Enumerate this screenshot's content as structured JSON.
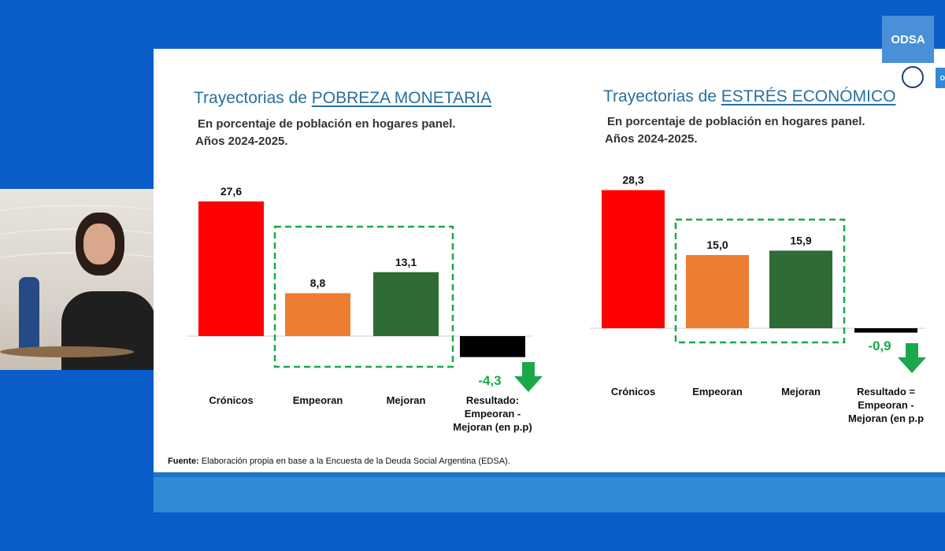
{
  "logo": {
    "text": "ODSA",
    "edge_text": "O"
  },
  "source": {
    "label": "Fuente:",
    "text": " Elaboración propia en base a la Encuesta de la Deuda Social Argentina (EDSA)."
  },
  "chart_data": [
    {
      "type": "bar",
      "title_prefix": "Trayectorias de ",
      "title_emph": "POBREZA MONETARIA",
      "subtitle_1": "En porcentaje de población en hogares panel.",
      "subtitle_2": "Años 2024-2025.",
      "categories": [
        "Crónicos",
        "Empeoran",
        "Mejoran",
        "Resultado: Empeoran - Mejoran (en p.p)"
      ],
      "category_lines": [
        [
          "Crónicos"
        ],
        [
          "Empeoran"
        ],
        [
          "Mejoran"
        ],
        [
          "Resultado:",
          "Empeoran -",
          "Mejoran (en p.p)"
        ]
      ],
      "values": [
        27.6,
        8.8,
        13.1,
        -4.3
      ],
      "labels": [
        "27,6",
        "8,8",
        "13,1",
        "-4,3"
      ],
      "colors": [
        "#ff0000",
        "#ed7d31",
        "#2e6b35",
        "#000000"
      ],
      "highlight": "Empeoran, Mejoran",
      "result_arrow": "down"
    },
    {
      "type": "bar",
      "title_prefix": "Trayectorias de ",
      "title_emph": "ESTRÉS ECONÓMICO",
      "subtitle_1": "En porcentaje de población en hogares panel.",
      "subtitle_2": "Años 2024-2025.",
      "categories": [
        "Crónicos",
        "Empeoran",
        "Mejoran",
        "Resultado = Empeoran - Mejoran (en p.p)"
      ],
      "category_lines": [
        [
          "Crónicos"
        ],
        [
          "Empeoran"
        ],
        [
          "Mejoran"
        ],
        [
          "Resultado =",
          "Empeoran -",
          "Mejoran (en p.p"
        ]
      ],
      "values": [
        28.3,
        15.0,
        15.9,
        -0.9
      ],
      "labels": [
        "28,3",
        "15,0",
        "15,9",
        "-0,9"
      ],
      "colors": [
        "#ff0000",
        "#ed7d31",
        "#2e6b35",
        "#000000"
      ],
      "highlight": "Empeoran, Mejoran",
      "result_arrow": "down"
    }
  ]
}
